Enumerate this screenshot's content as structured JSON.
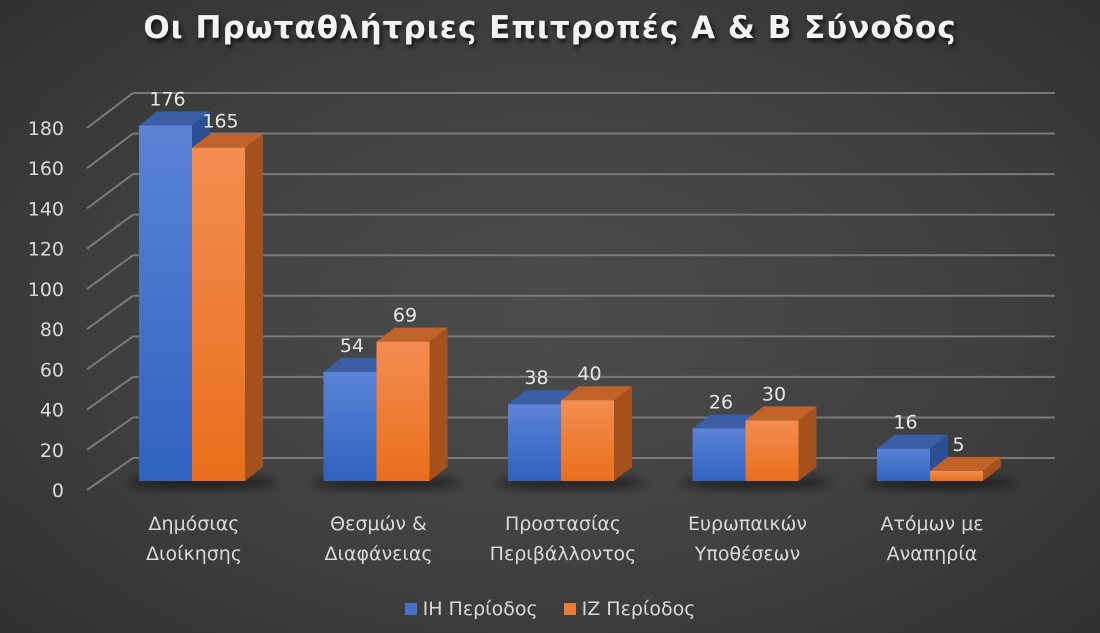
{
  "title": "Οι Πρωταθλήτριες Επιτροπές Α & Β Σύνοδος",
  "colors": {
    "series1": "#4472c4",
    "series2": "#ed7d31",
    "gridline": "#7a7a7a",
    "text": "#d9d9d9"
  },
  "legend": [
    {
      "label": "ΙΗ Περίοδος",
      "color": "#4472c4"
    },
    {
      "label": "ΙΖ Περίοδος",
      "color": "#ed7d31"
    }
  ],
  "chart_data": {
    "type": "bar",
    "title": "Οι Πρωταθλήτριες Επιτροπές Α & Β Σύνοδος",
    "categories": [
      [
        "Δημόσιας",
        "Διοίκησης"
      ],
      [
        "Θεσμών &",
        "Διαφάνειας"
      ],
      [
        "Προστασίας",
        "Περιβάλλοντος"
      ],
      [
        "Ευρωπαικών",
        "Υποθέσεων"
      ],
      [
        "Ατόμων με",
        "Αναπηρία"
      ]
    ],
    "series": [
      {
        "name": "ΙΗ Περίοδος",
        "values": [
          176,
          54,
          38,
          26,
          16
        ]
      },
      {
        "name": "ΙΖ Περίοδος",
        "values": [
          165,
          69,
          40,
          30,
          5
        ]
      }
    ],
    "xlabel": "",
    "ylabel": "",
    "ylim": [
      0,
      180
    ],
    "yticks": [
      0,
      20,
      40,
      60,
      80,
      100,
      120,
      140,
      160,
      180
    ],
    "grid": true,
    "legend_position": "bottom",
    "style": "3d-clustered-column"
  }
}
